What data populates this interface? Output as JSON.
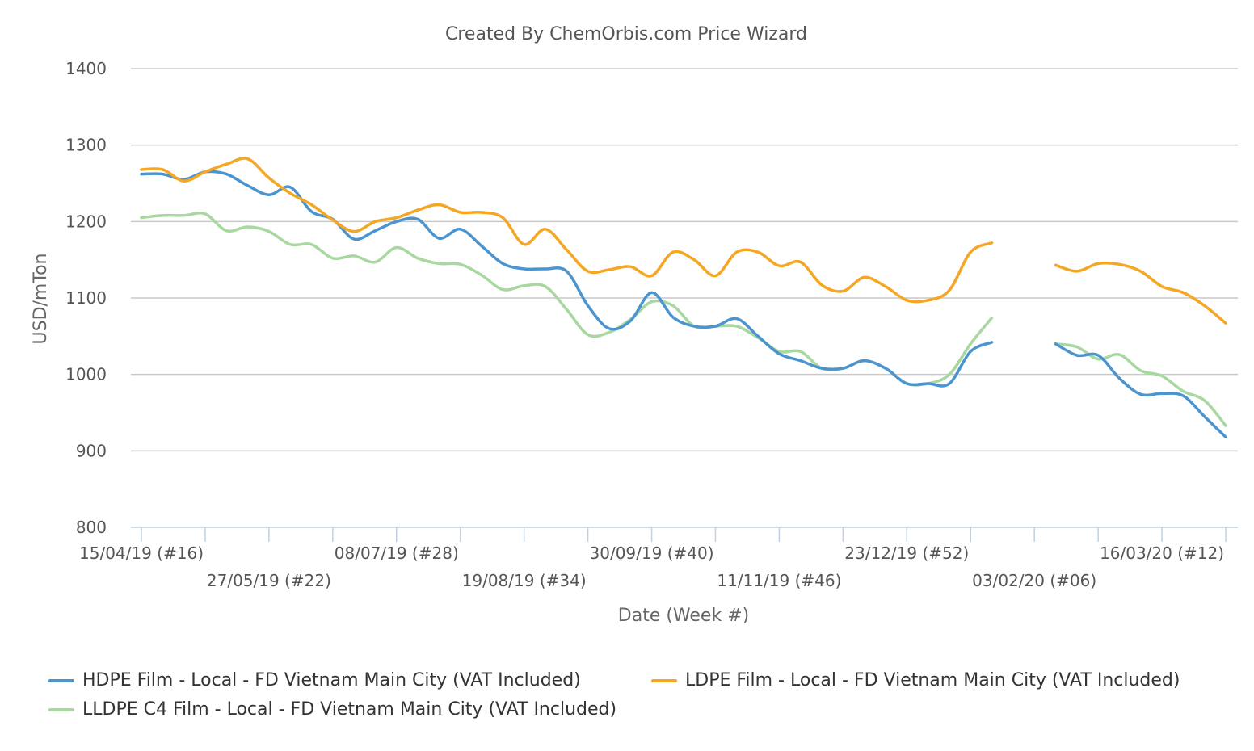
{
  "chart_data": {
    "type": "line",
    "title": "Created By ChemOrbis.com Price Wizard",
    "xlabel": "Date (Week #)",
    "ylabel": "USD/mTon",
    "ylim": [
      800,
      1400
    ],
    "yticks": [
      800,
      900,
      1000,
      1100,
      1200,
      1300,
      1400
    ],
    "grid": true,
    "legend_position": "bottom",
    "x_dates": [
      "2019-04-15",
      "2019-04-22",
      "2019-04-29",
      "2019-05-06",
      "2019-05-13",
      "2019-05-20",
      "2019-05-27",
      "2019-06-03",
      "2019-06-10",
      "2019-06-17",
      "2019-06-24",
      "2019-07-01",
      "2019-07-08",
      "2019-07-15",
      "2019-07-22",
      "2019-07-29",
      "2019-08-05",
      "2019-08-12",
      "2019-08-19",
      "2019-08-26",
      "2019-09-02",
      "2019-09-09",
      "2019-09-16",
      "2019-09-23",
      "2019-09-30",
      "2019-10-07",
      "2019-10-14",
      "2019-10-21",
      "2019-10-28",
      "2019-11-04",
      "2019-11-11",
      "2019-11-18",
      "2019-11-25",
      "2019-12-02",
      "2019-12-09",
      "2019-12-16",
      "2019-12-23",
      "2019-12-30",
      "2020-01-06",
      "2020-01-13",
      "2020-01-20",
      "2020-01-27",
      "2020-02-03",
      "2020-02-10",
      "2020-02-17",
      "2020-02-24",
      "2020-03-02",
      "2020-03-09",
      "2020-03-16",
      "2020-03-23",
      "2020-03-30",
      "2020-04-06"
    ],
    "x_ticks": [
      {
        "label": "15/04/19 (#16)",
        "row": 1
      },
      {
        "label": "27/05/19 (#22)",
        "row": 2
      },
      {
        "label": "08/07/19 (#28)",
        "row": 1
      },
      {
        "label": "19/08/19 (#34)",
        "row": 2
      },
      {
        "label": "30/09/19 (#40)",
        "row": 1
      },
      {
        "label": "11/11/19 (#46)",
        "row": 2
      },
      {
        "label": "23/12/19 (#52)",
        "row": 1
      },
      {
        "label": "03/02/20 (#06)",
        "row": 2
      },
      {
        "label": "16/03/20 (#12)",
        "row": 1
      }
    ],
    "x_tick_dates": [
      "2019-04-15",
      "2019-05-27",
      "2019-07-08",
      "2019-08-19",
      "2019-09-30",
      "2019-11-11",
      "2019-12-23",
      "2020-02-03",
      "2020-03-16"
    ],
    "minor_tick_dates": [
      "2019-04-15",
      "2019-05-06",
      "2019-05-27",
      "2019-06-17",
      "2019-07-08",
      "2019-07-29",
      "2019-08-19",
      "2019-09-09",
      "2019-09-30",
      "2019-10-21",
      "2019-11-11",
      "2019-12-02",
      "2019-12-23",
      "2020-01-13",
      "2020-02-03",
      "2020-02-24",
      "2020-03-16",
      "2020-04-06"
    ],
    "series": [
      {
        "name": "HDPE Film - Local - FD Vietnam Main City (VAT Included)",
        "color": "#4a94d0",
        "values": [
          1262,
          1262,
          1255,
          1265,
          1262,
          1247,
          1235,
          1245,
          1213,
          1203,
          1177,
          1188,
          1200,
          1203,
          1178,
          1190,
          1168,
          1145,
          1138,
          1138,
          1135,
          1090,
          1060,
          1070,
          1107,
          1075,
          1063,
          1063,
          1073,
          1050,
          1027,
          1018,
          1008,
          1008,
          1018,
          1008,
          988,
          988,
          988,
          1030,
          1042,
          null,
          null,
          1040,
          1025,
          1025,
          995,
          974,
          975,
          972,
          945,
          918
        ]
      },
      {
        "name": "LDPE Film - Local - FD Vietnam Main City (VAT Included)",
        "color": "#f5a623",
        "values": [
          1268,
          1268,
          1253,
          1265,
          1275,
          1282,
          1257,
          1237,
          1222,
          1202,
          1187,
          1200,
          1205,
          1215,
          1222,
          1212,
          1212,
          1205,
          1170,
          1190,
          1163,
          1135,
          1137,
          1141,
          1129,
          1160,
          1150,
          1129,
          1160,
          1160,
          1142,
          1147,
          1117,
          1109,
          1127,
          1115,
          1097,
          1097,
          1110,
          1160,
          1172,
          null,
          null,
          1143,
          1135,
          1145,
          1144,
          1135,
          1115,
          1107,
          1090,
          1067
        ]
      },
      {
        "name": "LLDPE C4 Film - Local - FD Vietnam Main City (VAT Included)",
        "color": "#a8d8a0",
        "values": [
          1205,
          1208,
          1208,
          1210,
          1188,
          1193,
          1187,
          1170,
          1170,
          1152,
          1155,
          1147,
          1166,
          1152,
          1145,
          1144,
          1130,
          1111,
          1116,
          1115,
          1085,
          1052,
          1055,
          1072,
          1095,
          1090,
          1063,
          1063,
          1063,
          1048,
          1030,
          1030,
          1008,
          1008,
          1018,
          1008,
          988,
          988,
          1000,
          1040,
          1074,
          null,
          null,
          1040,
          1036,
          1020,
          1026,
          1005,
          998,
          978,
          966,
          933
        ]
      }
    ]
  }
}
